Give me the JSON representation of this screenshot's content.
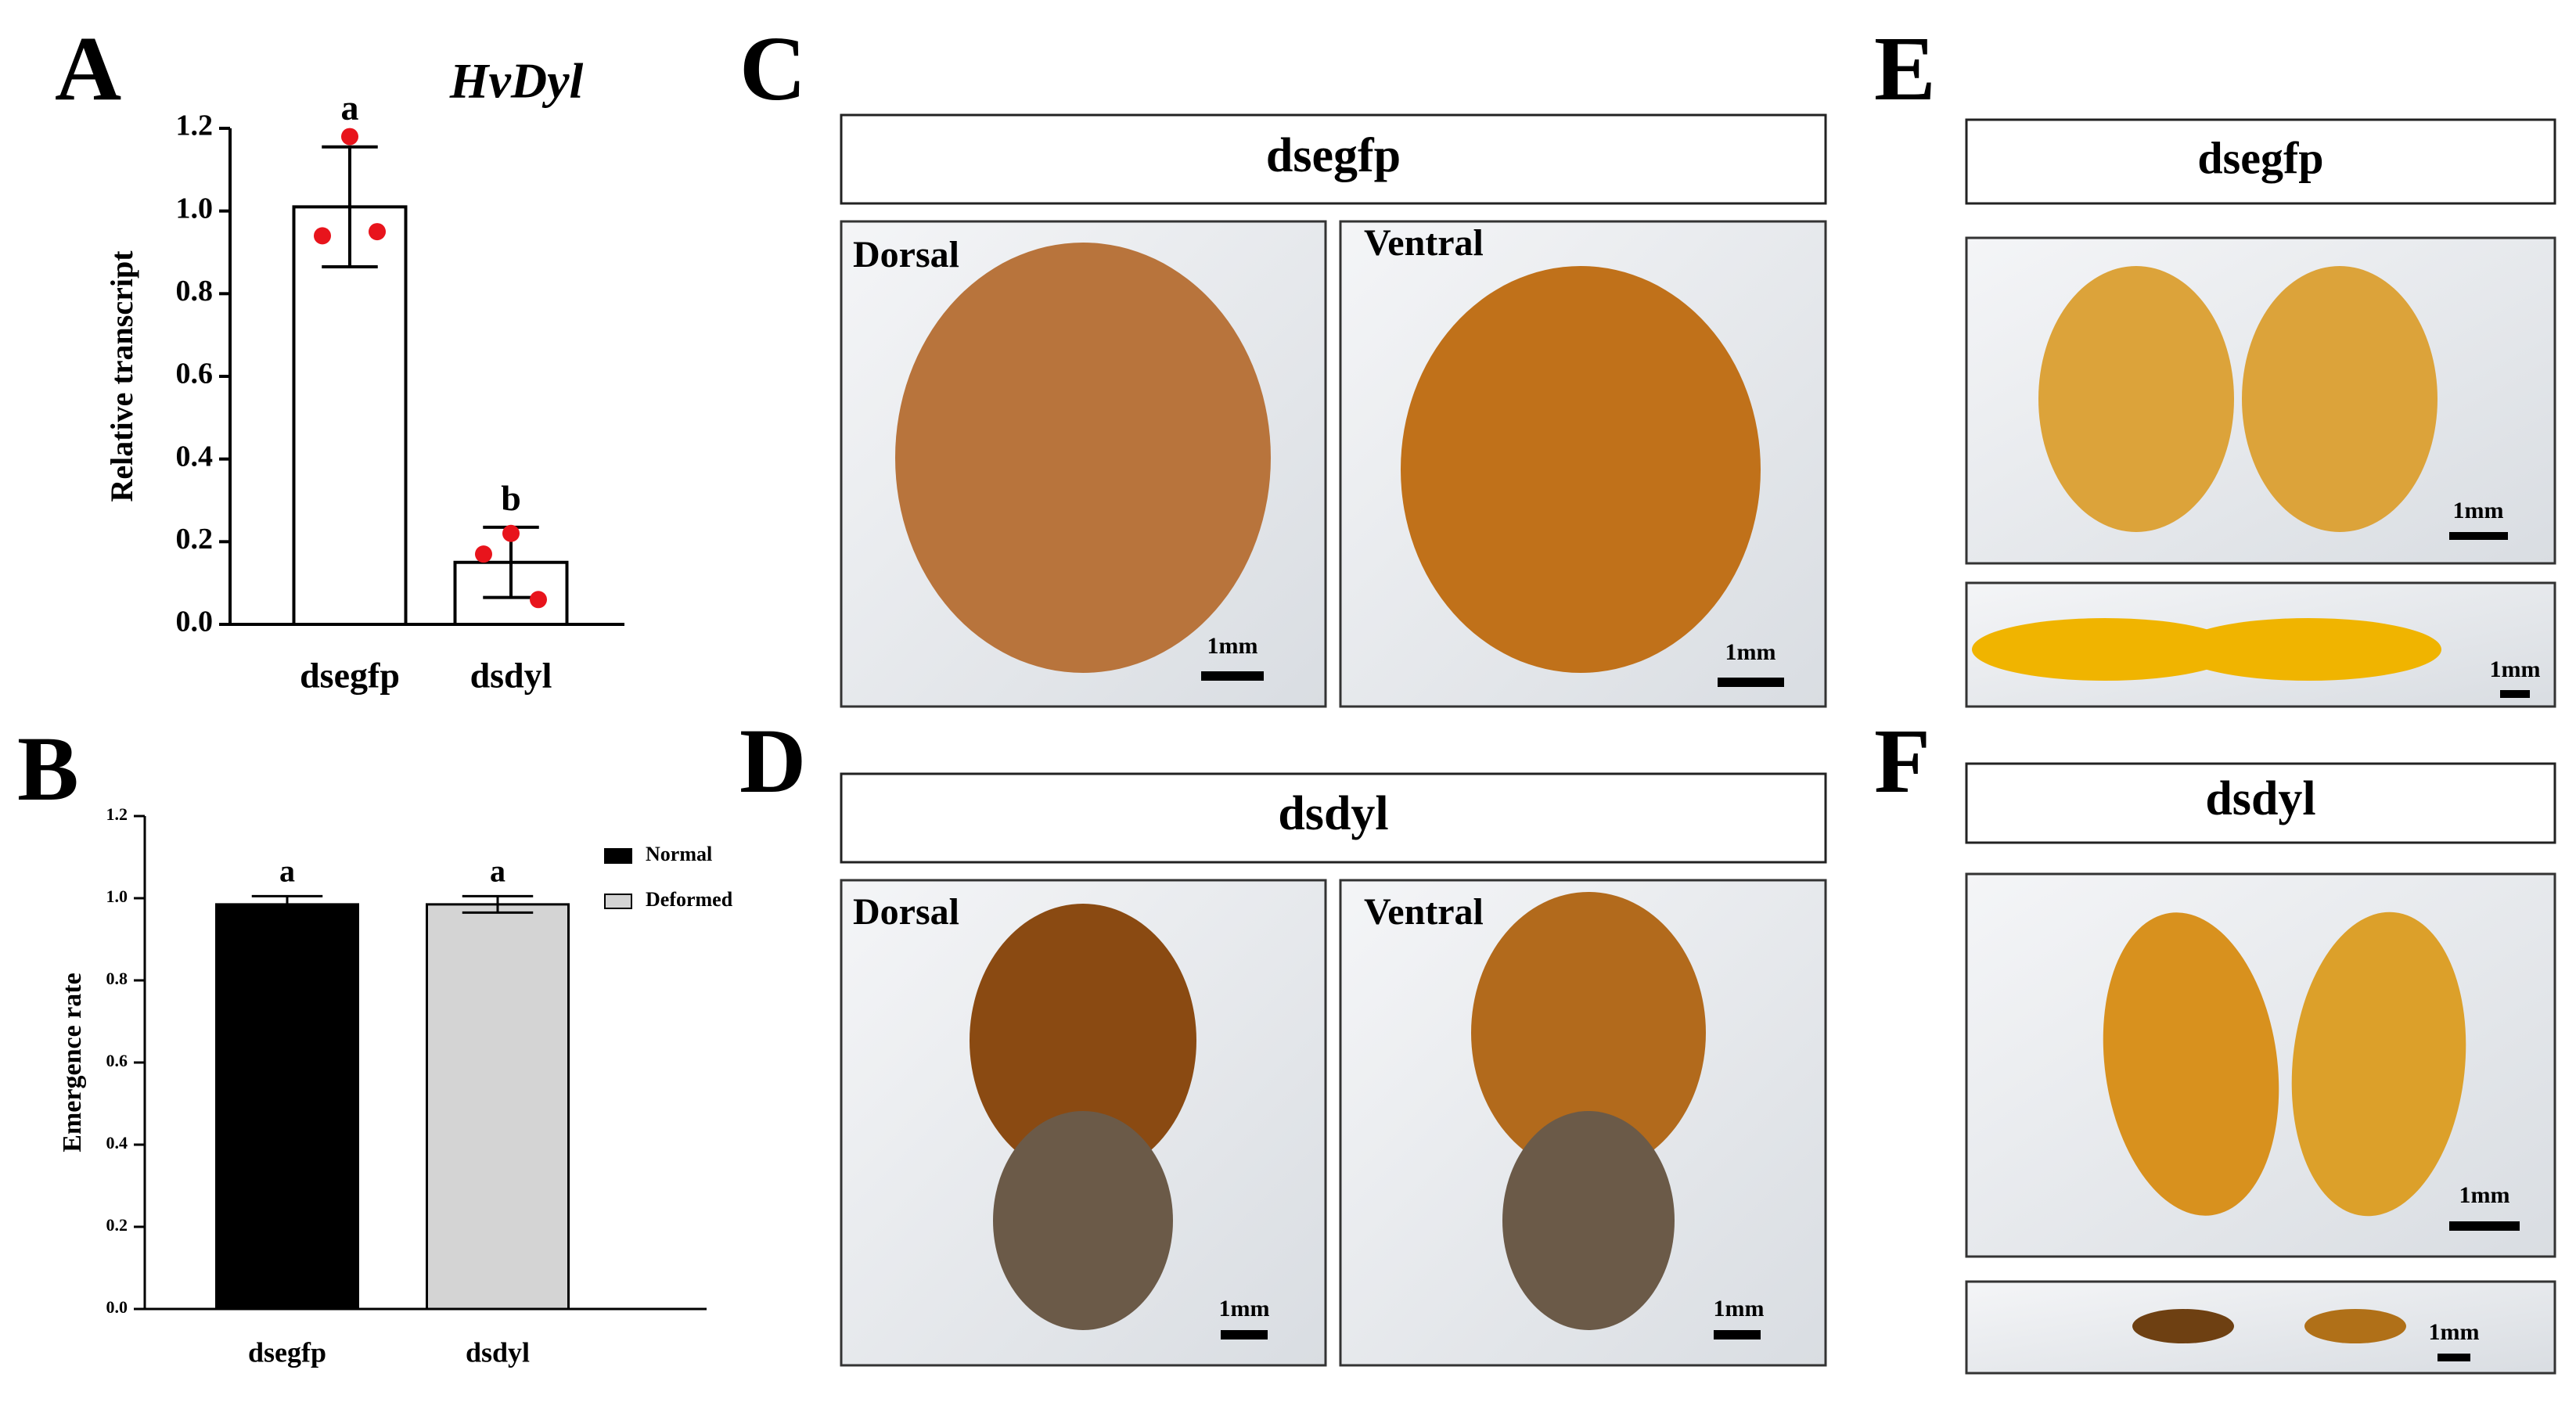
{
  "chart_data": [
    {
      "type": "bar",
      "title": "HvDyl",
      "y_label": "Relative transcript",
      "categories": [
        "dsegfp",
        "dsdyl"
      ],
      "values": [
        1.01,
        0.15
      ],
      "errors": [
        0.145,
        0.085
      ],
      "points": [
        [
          1.18,
          0.94,
          0.95
        ],
        [
          0.22,
          0.17,
          0.06
        ]
      ],
      "point_color": "#e8141c",
      "significance": [
        "a",
        "b"
      ],
      "color": "#ffffff",
      "ylim": [
        0,
        1.2
      ],
      "yticks": [
        {
          "value": 0,
          "label": "0.0"
        },
        0.2,
        0.4,
        0.6,
        0.8,
        {
          "value": 1,
          "label": "1.0"
        },
        1.2
      ]
    },
    {
      "type": "bar",
      "y_label": "Emergence rate",
      "categories": [
        "dsegfp",
        "dsdyl"
      ],
      "series": [
        {
          "name": "Normal",
          "color": "#000000",
          "values": [
            0.985,
            null
          ],
          "errors": [
            0.02,
            null
          ]
        },
        {
          "name": "Deformed",
          "color": "#d4d4d4",
          "values": [
            null,
            0.985
          ],
          "errors": [
            null,
            0.02
          ]
        }
      ],
      "significance": [
        "a",
        "a"
      ],
      "ylim": [
        0,
        1.2
      ],
      "yticks": [
        {
          "value": 0,
          "label": "0.0"
        },
        0.2,
        0.4,
        0.6,
        0.8,
        {
          "value": 1,
          "label": "1.0"
        },
        1.2
      ]
    }
  ],
  "panel_labels": [
    "A",
    "B",
    "C",
    "D",
    "E",
    "F"
  ],
  "panels": [
    {
      "header": "dsegfp",
      "views": [
        "Dorsal",
        "Ventral"
      ],
      "scale_bars": [
        "1mm",
        "1mm"
      ]
    },
    {
      "header": "dsdyl",
      "views": [
        "Dorsal",
        "Ventral"
      ],
      "scale_bars": [
        "1mm",
        "1mm"
      ]
    },
    {
      "header": "dsegfp",
      "scale_bars": [
        "1mm",
        "1mm"
      ]
    },
    {
      "header": "dsdyl",
      "scale_bars": [
        "1mm",
        "1mm"
      ]
    }
  ]
}
